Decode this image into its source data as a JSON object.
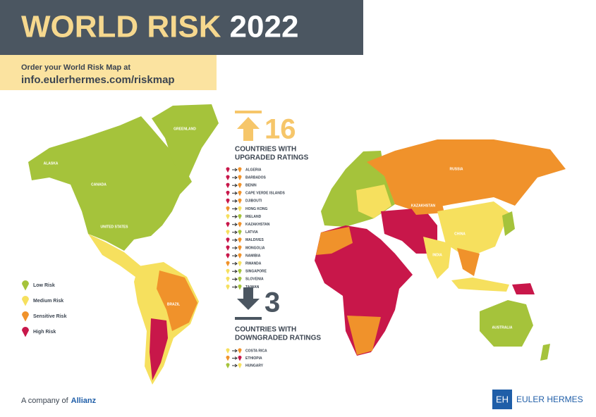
{
  "header": {
    "title": "WORLD RISK",
    "year": "2022"
  },
  "promo": {
    "line1": "Order your World Risk Map at",
    "url": "info.eulerhermes.com/riskmap"
  },
  "upgrades": {
    "count": 16,
    "heading": [
      "COUNTRIES WITH",
      "UPGRADED RATINGS"
    ],
    "countries": [
      {
        "name": "ALGERIA",
        "from": "#c8174a",
        "to": "#f0922b"
      },
      {
        "name": "BARBADOS",
        "from": "#c8174a",
        "to": "#f0922b"
      },
      {
        "name": "BENIN",
        "from": "#c8174a",
        "to": "#f0922b"
      },
      {
        "name": "CAPE VERDE ISLANDS",
        "from": "#c8174a",
        "to": "#f0922b"
      },
      {
        "name": "DJIBOUTI",
        "from": "#c8174a",
        "to": "#f0922b"
      },
      {
        "name": "HONG KONG",
        "from": "#f0922b",
        "to": "#f6e05e"
      },
      {
        "name": "IRELAND",
        "from": "#f6e05e",
        "to": "#a5c33b"
      },
      {
        "name": "KAZAKHSTAN",
        "from": "#c8174a",
        "to": "#f0922b"
      },
      {
        "name": "LATVIA",
        "from": "#f6e05e",
        "to": "#a5c33b"
      },
      {
        "name": "MALDIVES",
        "from": "#c8174a",
        "to": "#f0922b"
      },
      {
        "name": "MONGOLIA",
        "from": "#c8174a",
        "to": "#f0922b"
      },
      {
        "name": "NAMIBIA",
        "from": "#c8174a",
        "to": "#f0922b"
      },
      {
        "name": "RWANDA",
        "from": "#f0922b",
        "to": "#f6e05e"
      },
      {
        "name": "SINGAPORE",
        "from": "#f6e05e",
        "to": "#a5c33b"
      },
      {
        "name": "SLOVENIA",
        "from": "#f6e05e",
        "to": "#a5c33b"
      },
      {
        "name": "TAIWAN",
        "from": "#f6e05e",
        "to": "#a5c33b"
      }
    ]
  },
  "downgrades": {
    "count": 3,
    "heading": [
      "COUNTRIES WITH",
      "DOWNGRADED RATINGS"
    ],
    "countries": [
      {
        "name": "COSTA RICA",
        "from": "#f6e05e",
        "to": "#f0922b"
      },
      {
        "name": "ETHIOPIA",
        "from": "#f0922b",
        "to": "#c8174a"
      },
      {
        "name": "HUNGARY",
        "from": "#a5c33b",
        "to": "#f6e05e"
      }
    ]
  },
  "legend": [
    {
      "label": "Low Risk",
      "color": "#a5c33b"
    },
    {
      "label": "Medium Risk",
      "color": "#f6e05e"
    },
    {
      "label": "Sensitive Risk",
      "color": "#f0922b"
    },
    {
      "label": "High Risk",
      "color": "#c8174a"
    }
  ],
  "map_labels": [
    "GREENLAND",
    "CANADA",
    "ALASKA",
    "UNITED STATES",
    "BRAZIL",
    "RUSSIA",
    "CHINA",
    "AUSTRALIA",
    "KAZAKHSTAN",
    "INDIA"
  ],
  "footer": {
    "company": "A company of",
    "brand": "Allianz",
    "logo_mark": "EH",
    "logo_text": "EULER HERMES"
  }
}
